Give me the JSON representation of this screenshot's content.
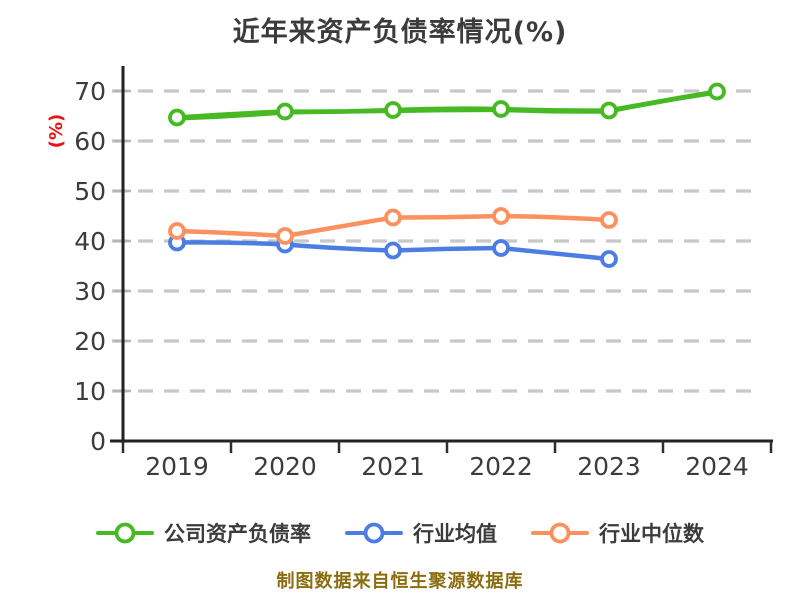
{
  "chart_data": {
    "type": "line",
    "title": "近年来资产负债率情况(%)",
    "ylabel": "(%)",
    "xlabel": "",
    "categories": [
      "2019",
      "2020",
      "2021",
      "2022",
      "2023",
      "2024"
    ],
    "yticks": [
      0,
      10,
      20,
      30,
      40,
      50,
      60,
      70
    ],
    "ylim": [
      0,
      70
    ],
    "grid": "horizontal-dashed",
    "legend_position": "bottom",
    "style": "hand-drawn-xkcd",
    "series": [
      {
        "name": "公司资产负债率",
        "color": "#46b923",
        "marker": "circle-white-fill",
        "values": [
          64.7,
          65.9,
          66.2,
          66.4,
          66.1,
          69.9
        ]
      },
      {
        "name": "行业均值",
        "color": "#4b7de2",
        "marker": "circle-white-fill",
        "values": [
          39.7,
          39.3,
          38.1,
          38.6,
          36.4,
          null
        ]
      },
      {
        "name": "行业中位数",
        "color": "#fa915f",
        "marker": "circle-white-fill",
        "values": [
          42.0,
          41.0,
          44.7,
          45.0,
          44.2,
          null
        ]
      }
    ]
  },
  "footer": {
    "source_note": "制图数据来自恒生聚源数据库"
  },
  "colors": {
    "background": "#ffffff",
    "title_text": "#3c3c3c",
    "axis_text": "#3c3c3c",
    "axis_line": "#222222",
    "tick_minor": "#b6b6b6",
    "gridline": "#c8c8c8",
    "ylabel_red": "#ee1111",
    "footer_gold": "#8b6d10"
  }
}
